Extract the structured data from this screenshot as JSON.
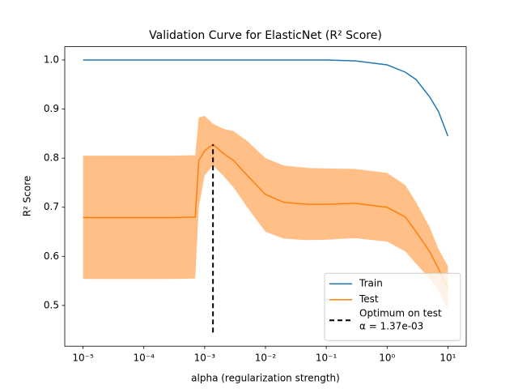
{
  "chart_data": {
    "type": "line",
    "title": "Validation Curve for ElasticNet (R² Score)",
    "xlabel": "alpha (regularization strength)",
    "ylabel": "R² Score",
    "xscale": "log",
    "xlim": [
      5e-06,
      20
    ],
    "ylim": [
      0.417,
      1.027
    ],
    "xticks": [
      {
        "value": 1e-05,
        "label": "10⁻⁵"
      },
      {
        "value": 0.0001,
        "label": "10⁻⁴"
      },
      {
        "value": 0.001,
        "label": "10⁻³"
      },
      {
        "value": 0.01,
        "label": "10⁻²"
      },
      {
        "value": 0.1,
        "label": "10⁻¹"
      },
      {
        "value": 1,
        "label": "10⁰"
      },
      {
        "value": 10,
        "label": "10¹"
      }
    ],
    "yticks": [
      0.5,
      0.6,
      0.7,
      0.8,
      0.9,
      {
        "value": 1,
        "label": "1.0"
      }
    ],
    "grid": false,
    "legend": "lower right",
    "x": [
      1e-05,
      3e-05,
      0.0001,
      0.0003,
      0.0007,
      0.0008,
      0.001,
      0.00137,
      0.002,
      0.003,
      0.005,
      0.01,
      0.02,
      0.05,
      0.1,
      0.3,
      1,
      2,
      3,
      5,
      7,
      10
    ],
    "series": [
      {
        "name": "Train",
        "color": "#1f77b4",
        "values": [
          1,
          1,
          1,
          1,
          1,
          1,
          1,
          1,
          1,
          1,
          1,
          1,
          1,
          1,
          1,
          0.998,
          0.99,
          0.975,
          0.96,
          0.925,
          0.895,
          0.845
        ]
      },
      {
        "name": "Test",
        "color": "#ff7f0e",
        "values": [
          0.679,
          0.679,
          0.679,
          0.679,
          0.68,
          0.795,
          0.815,
          0.828,
          0.81,
          0.795,
          0.765,
          0.726,
          0.71,
          0.706,
          0.706,
          0.708,
          0.7,
          0.68,
          0.65,
          0.61,
          0.575,
          0.535
        ],
        "lower": [
          0.554,
          0.554,
          0.554,
          0.554,
          0.555,
          0.7,
          0.765,
          0.785,
          0.765,
          0.74,
          0.7,
          0.65,
          0.636,
          0.633,
          0.634,
          0.637,
          0.63,
          0.61,
          0.585,
          0.555,
          0.53,
          0.49
        ],
        "upper": [
          0.805,
          0.805,
          0.805,
          0.805,
          0.806,
          0.883,
          0.886,
          0.87,
          0.86,
          0.855,
          0.835,
          0.8,
          0.785,
          0.78,
          0.779,
          0.778,
          0.77,
          0.745,
          0.71,
          0.66,
          0.615,
          0.58
        ]
      }
    ],
    "optimum": {
      "name": "Optimum on test",
      "x": 0.00137,
      "x_label": "α = 1.37e-03",
      "ymin": 0.445,
      "ymax": 0.828,
      "color": "#000000"
    }
  }
}
